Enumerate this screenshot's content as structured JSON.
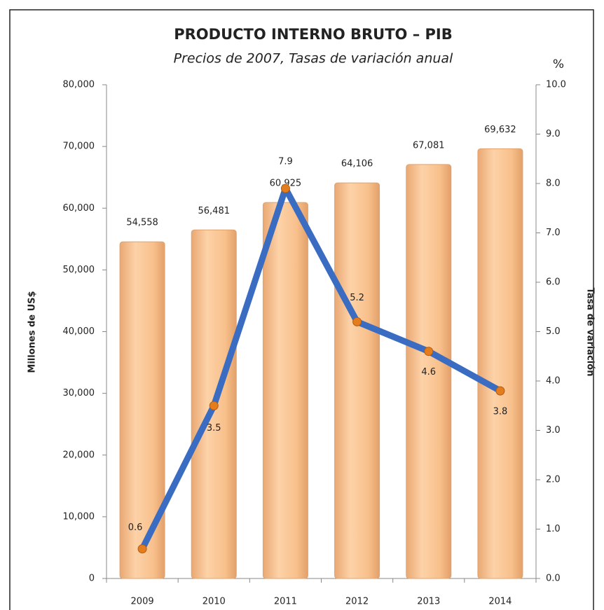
{
  "chart_data": {
    "type": "bar",
    "title": "PRODUCTO INTERNO BRUTO – PIB",
    "subtitle": "Precios de 2007, Tasas de variación anual",
    "ylabel": "Millones de US$",
    "y2label": "Tasa de variación",
    "y2unit": "%",
    "categories": [
      "2009",
      "2010",
      "2011",
      "2012",
      "2013",
      "2014"
    ],
    "series": [
      {
        "name": "PIB",
        "type": "bar",
        "color": "#f8c38e",
        "values": [
          54558,
          56481,
          60925,
          64106,
          67081,
          69632
        ],
        "value_labels": [
          "54,558",
          "56,481",
          "60,925",
          "64,106",
          "67,081",
          "69,632"
        ]
      },
      {
        "name": "Tasa de variación",
        "type": "line",
        "axis": "y2",
        "color": "#3a6cc2",
        "marker_color": "#e47d1e",
        "values": [
          0.6,
          3.5,
          7.9,
          5.2,
          4.6,
          3.8
        ]
      }
    ],
    "ylim": [
      0,
      80000
    ],
    "yticks": [
      0,
      {
        "value": 10000,
        "label": "10,000"
      },
      {
        "value": 20000,
        "label": "20,000"
      },
      {
        "value": 30000,
        "label": "30,000"
      },
      {
        "value": 40000,
        "label": "40,000"
      },
      {
        "value": 50000,
        "label": "50,000"
      },
      {
        "value": 60000,
        "label": "60,000"
      },
      {
        "value": 70000,
        "label": "70,000"
      },
      {
        "value": 80000,
        "label": "80,000"
      }
    ],
    "y2lim": [
      0,
      10
    ],
    "y2ticks": [
      {
        "value": 0,
        "label": "0.0"
      },
      {
        "value": 1,
        "label": "1.0"
      },
      {
        "value": 2,
        "label": "2.0"
      },
      {
        "value": 3,
        "label": "3.0"
      },
      {
        "value": 4,
        "label": "4.0"
      },
      {
        "value": 5,
        "label": "5.0"
      },
      {
        "value": 6,
        "label": "6.0"
      },
      {
        "value": 7,
        "label": "7.0"
      },
      {
        "value": 8,
        "label": "8.0"
      },
      {
        "value": 9,
        "label": "9.0"
      },
      {
        "value": 10,
        "label": "10.0"
      }
    ],
    "grid": false
  }
}
